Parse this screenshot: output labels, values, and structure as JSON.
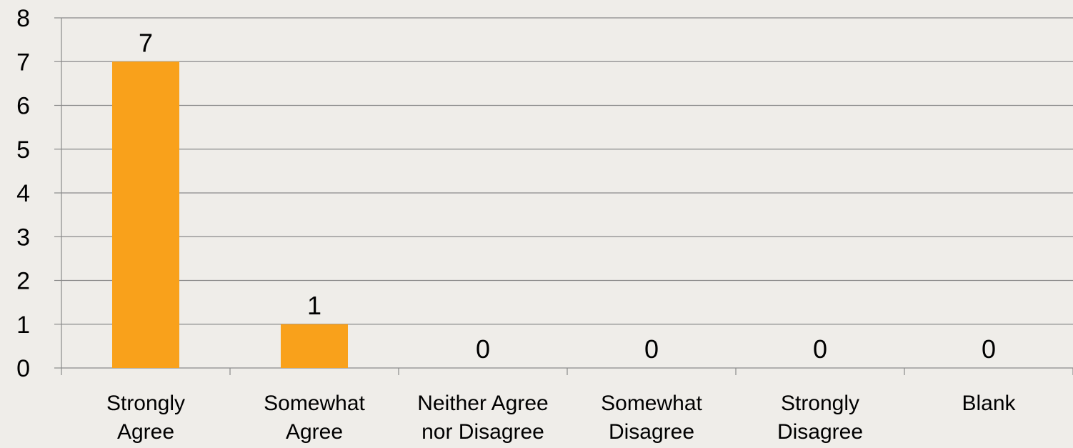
{
  "chart_data": {
    "type": "bar",
    "categories": [
      [
        "Strongly",
        "Agree"
      ],
      [
        "Somewhat",
        "Agree"
      ],
      [
        "Neither Agree",
        "nor Disagree"
      ],
      [
        "Somewhat",
        "Disagree"
      ],
      [
        "Strongly",
        "Disagree"
      ],
      [
        "Blank"
      ]
    ],
    "values": [
      7,
      1,
      0,
      0,
      0,
      0
    ],
    "data_labels": [
      "7",
      "1",
      "0",
      "0",
      "0",
      "0"
    ],
    "title": "",
    "xlabel": "",
    "ylabel": "",
    "ylim": [
      0,
      8
    ],
    "yticks": [
      "0",
      "1",
      "2",
      "3",
      "4",
      "5",
      "6",
      "7",
      "8"
    ],
    "grid": true,
    "legend": "none",
    "colors": {
      "bar": "#f9a11b",
      "grid": "#8a8a8a",
      "axis": "#8a8a8a",
      "background": "#efede9"
    }
  }
}
